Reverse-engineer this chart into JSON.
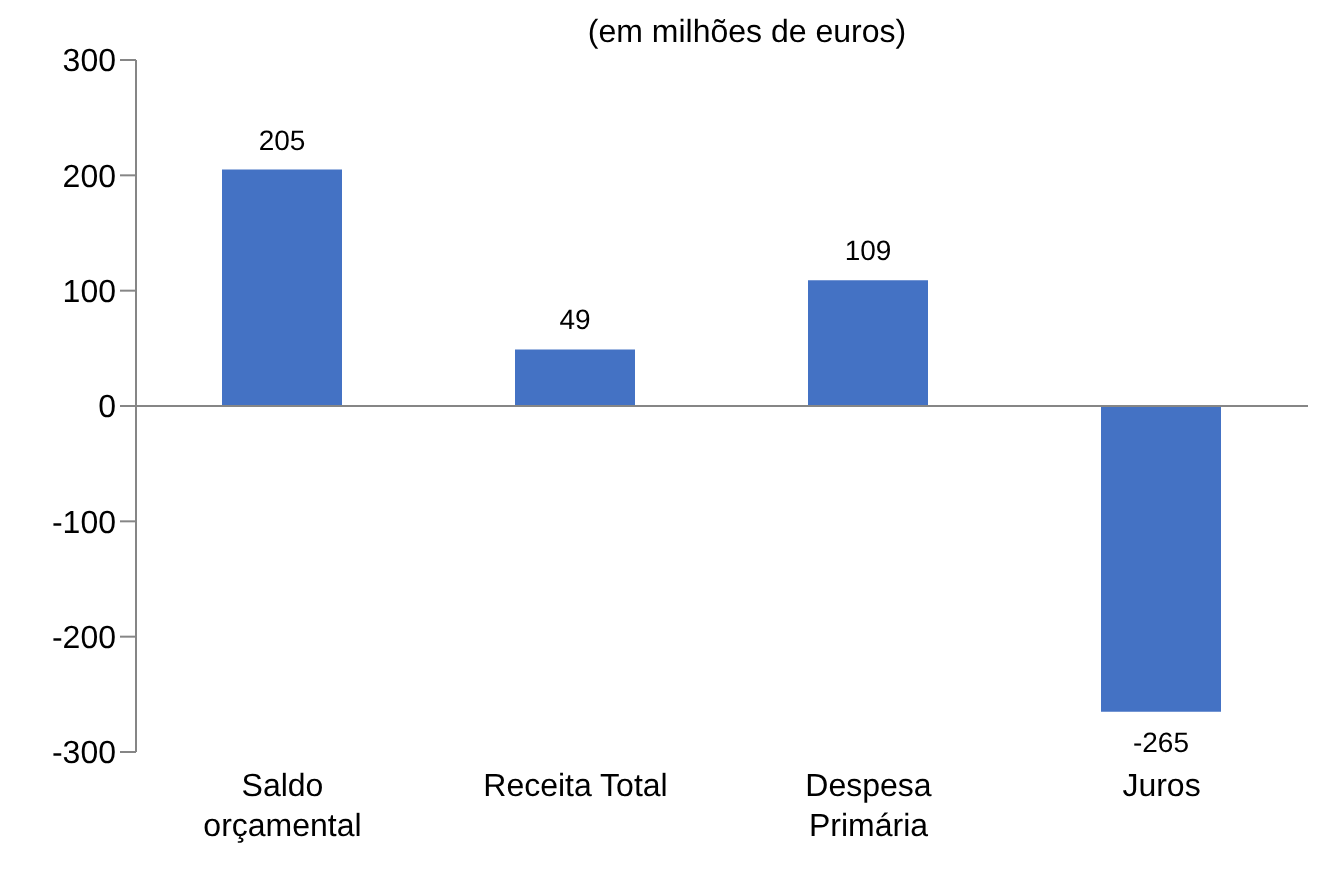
{
  "chart_data": {
    "type": "bar",
    "subtitle": "(em milhões de euros)",
    "categories": [
      "Saldo orçamental",
      "Receita Total",
      "Despesa Primária",
      "Juros"
    ],
    "values": [
      205,
      49,
      109,
      -265
    ],
    "color": "#4472c4",
    "ylim": [
      -300,
      300
    ],
    "yticks": [
      -300,
      -200,
      -100,
      0,
      100,
      200,
      300
    ],
    "data_labels": true,
    "legend": false
  }
}
